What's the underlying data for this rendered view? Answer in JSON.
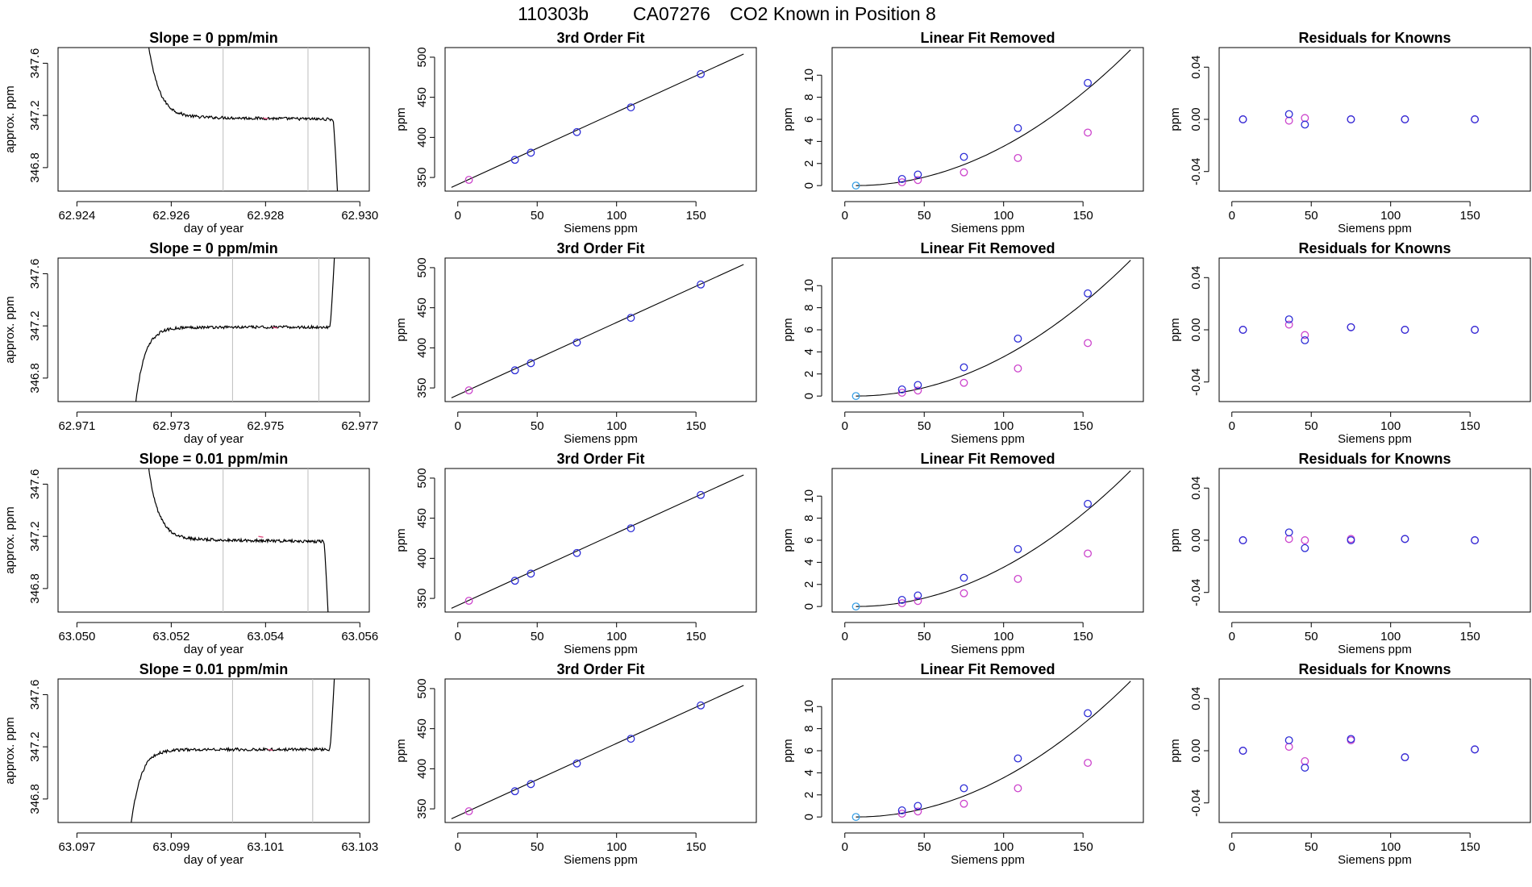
{
  "title": {
    "run_id": "110303b",
    "tank_id": "CA07276",
    "description": "CO2 Known in Position  8"
  },
  "colors": {
    "line": "#000000",
    "frame": "#000000",
    "guide": "#bdbdbd",
    "known_point": "#2e2ed6",
    "residual_point": "#cc44cc",
    "origin_point": "#3aa0e6",
    "highlight_point": "#e05080"
  },
  "chart_data": [
    {
      "type": "line",
      "panel": "trace",
      "row": 1,
      "title": "Slope =  0  ppm/min",
      "xlabel": "day of year",
      "ylabel": "approx. ppm",
      "xlim": [
        62.9236,
        62.9302
      ],
      "ylim": [
        346.62,
        347.72
      ],
      "xticks": [
        "62.924",
        "62.926",
        "62.928",
        "62.930"
      ],
      "yticks": [
        "346.8",
        "347.2",
        "347.6"
      ],
      "guides_x": [
        62.9271,
        62.9289
      ],
      "highlight": [
        62.928,
        347.18
      ],
      "trace": {
        "t0": 62.9254,
        "t1": 62.92955,
        "plateau": 347.19,
        "start": 347.72,
        "end": 346.62,
        "shape": "settle-drop"
      }
    },
    {
      "type": "scatter",
      "panel": "fit",
      "row": 1,
      "title": "3rd Order Fit",
      "xlabel": "Siemens ppm",
      "ylabel": "ppm",
      "xlim": [
        -8,
        188
      ],
      "ylim": [
        333,
        512
      ],
      "xticks": [
        "0",
        "50",
        "100",
        "150"
      ],
      "yticks": [
        "350",
        "400",
        "450",
        "500"
      ],
      "fit_line": [
        [
          -4,
          337.6
        ],
        [
          180,
          504.0
        ]
      ],
      "points_known": [
        [
          36,
          372.0
        ],
        [
          46,
          380.9
        ],
        [
          75,
          406.6
        ],
        [
          109,
          437.4
        ],
        [
          153,
          479.0
        ]
      ],
      "points_sample": [
        [
          7,
          347.0
        ]
      ]
    },
    {
      "type": "scatter",
      "panel": "linear_removed",
      "row": 1,
      "title": "Linear Fit Removed",
      "xlabel": "Siemens ppm",
      "ylabel": "ppm",
      "xlim": [
        -8,
        188
      ],
      "ylim": [
        -0.5,
        12.5
      ],
      "xticks": [
        "0",
        "50",
        "100",
        "150"
      ],
      "yticks": [
        "0",
        "2",
        "4",
        "6",
        "8",
        "10"
      ],
      "fit_curve": {
        "x0": 7,
        "x1": 180,
        "a": 0.000411,
        "exp": 2
      },
      "points_known": [
        [
          36,
          0.6
        ],
        [
          46,
          1.0
        ],
        [
          75,
          2.6
        ],
        [
          109,
          5.2
        ],
        [
          153,
          9.3
        ]
      ],
      "points_sample": [
        [
          36,
          0.3
        ],
        [
          46,
          0.5
        ],
        [
          75,
          1.2
        ],
        [
          109,
          2.5
        ],
        [
          153,
          4.8
        ]
      ],
      "points_origin": [
        [
          7,
          0.0
        ]
      ]
    },
    {
      "type": "scatter",
      "panel": "residuals",
      "row": 1,
      "title": "Residuals for Knowns",
      "xlabel": "Siemens ppm",
      "ylabel": "ppm",
      "xlim": [
        -8,
        188
      ],
      "ylim": [
        -0.055,
        0.055
      ],
      "xticks": [
        "0",
        "50",
        "100",
        "150"
      ],
      "yticks": [
        "-0.04",
        "0.00",
        "0.04"
      ],
      "points_known": [
        [
          7,
          0.0
        ],
        [
          36,
          0.004
        ],
        [
          46,
          -0.004
        ],
        [
          75,
          0.0
        ],
        [
          109,
          0.0
        ],
        [
          153,
          0.0
        ]
      ],
      "points_sample": [
        [
          7,
          0.0
        ],
        [
          36,
          -0.001
        ],
        [
          46,
          0.001
        ],
        [
          75,
          0.0
        ],
        [
          109,
          0.0
        ],
        [
          153,
          0.0
        ]
      ]
    },
    {
      "type": "line",
      "panel": "trace",
      "row": 2,
      "title": "Slope =  0  ppm/min",
      "xlabel": "day of year",
      "ylabel": "approx. ppm",
      "xlim": [
        62.9706,
        62.9772
      ],
      "ylim": [
        346.62,
        347.72
      ],
      "xticks": [
        "62.971",
        "62.973",
        "62.975",
        "62.977"
      ],
      "yticks": [
        "346.8",
        "347.2",
        "347.6"
      ],
      "guides_x": [
        62.9743,
        62.97613
      ],
      "highlight": [
        62.9752,
        347.19
      ],
      "trace": {
        "t0": 62.9721,
        "t1": 62.9765,
        "plateau": 347.19,
        "start": 346.62,
        "end": 347.72,
        "shape": "rise-jump"
      }
    },
    {
      "type": "scatter",
      "panel": "fit",
      "row": 2,
      "title": "3rd Order Fit",
      "xlabel": "Siemens ppm",
      "ylabel": "ppm",
      "xlim": [
        -8,
        188
      ],
      "ylim": [
        333,
        512
      ],
      "xticks": [
        "0",
        "50",
        "100",
        "150"
      ],
      "yticks": [
        "350",
        "400",
        "450",
        "500"
      ],
      "fit_line": [
        [
          -4,
          337.6
        ],
        [
          180,
          504.0
        ]
      ],
      "points_known": [
        [
          36,
          372.0
        ],
        [
          46,
          380.9
        ],
        [
          75,
          406.6
        ],
        [
          109,
          437.4
        ],
        [
          153,
          479.0
        ]
      ],
      "points_sample": [
        [
          7,
          347.0
        ]
      ]
    },
    {
      "type": "scatter",
      "panel": "linear_removed",
      "row": 2,
      "title": "Linear Fit Removed",
      "xlabel": "Siemens ppm",
      "ylabel": "ppm",
      "xlim": [
        -8,
        188
      ],
      "ylim": [
        -0.5,
        12.5
      ],
      "xticks": [
        "0",
        "50",
        "100",
        "150"
      ],
      "yticks": [
        "0",
        "2",
        "4",
        "6",
        "8",
        "10"
      ],
      "fit_curve": {
        "x0": 7,
        "x1": 180,
        "a": 0.000411,
        "exp": 2
      },
      "points_known": [
        [
          36,
          0.6
        ],
        [
          46,
          1.0
        ],
        [
          75,
          2.6
        ],
        [
          109,
          5.2
        ],
        [
          153,
          9.3
        ]
      ],
      "points_sample": [
        [
          36,
          0.3
        ],
        [
          46,
          0.5
        ],
        [
          75,
          1.2
        ],
        [
          109,
          2.5
        ],
        [
          153,
          4.8
        ]
      ],
      "points_origin": [
        [
          7,
          0.0
        ]
      ]
    },
    {
      "type": "scatter",
      "panel": "residuals",
      "row": 2,
      "title": "Residuals for Knowns",
      "xlabel": "Siemens ppm",
      "ylabel": "ppm",
      "xlim": [
        -8,
        188
      ],
      "ylim": [
        -0.055,
        0.055
      ],
      "xticks": [
        "0",
        "50",
        "100",
        "150"
      ],
      "yticks": [
        "-0.04",
        "0.00",
        "0.04"
      ],
      "points_known": [
        [
          7,
          0.0
        ],
        [
          36,
          0.008
        ],
        [
          46,
          -0.008
        ],
        [
          75,
          0.002
        ],
        [
          109,
          0.0
        ],
        [
          153,
          0.0
        ]
      ],
      "points_sample": [
        [
          7,
          0.0
        ],
        [
          36,
          0.004
        ],
        [
          46,
          -0.004
        ],
        [
          75,
          0.002
        ],
        [
          109,
          0.0
        ],
        [
          153,
          0.0
        ]
      ]
    },
    {
      "type": "line",
      "panel": "trace",
      "row": 3,
      "title": "Slope =  0.01  ppm/min",
      "xlabel": "day of year",
      "ylabel": "approx. ppm",
      "xlim": [
        63.0496,
        63.0562
      ],
      "ylim": [
        346.62,
        347.72
      ],
      "xticks": [
        "63.050",
        "63.052",
        "63.054",
        "63.056"
      ],
      "yticks": [
        "346.8",
        "347.2",
        "347.6"
      ],
      "guides_x": [
        63.0531,
        63.0549
      ],
      "highlight": [
        63.0539,
        347.2
      ],
      "trace": {
        "t0": 63.0514,
        "t1": 63.05535,
        "plateau": 347.18,
        "start": 347.72,
        "end": 346.62,
        "shape": "settle-drop"
      }
    },
    {
      "type": "scatter",
      "panel": "fit",
      "row": 3,
      "title": "3rd Order Fit",
      "xlabel": "Siemens ppm",
      "ylabel": "ppm",
      "xlim": [
        -8,
        188
      ],
      "ylim": [
        333,
        512
      ],
      "xticks": [
        "0",
        "50",
        "100",
        "150"
      ],
      "yticks": [
        "350",
        "400",
        "450",
        "500"
      ],
      "fit_line": [
        [
          -4,
          337.6
        ],
        [
          180,
          504.0
        ]
      ],
      "points_known": [
        [
          36,
          372.0
        ],
        [
          46,
          380.9
        ],
        [
          75,
          406.6
        ],
        [
          109,
          437.4
        ],
        [
          153,
          479.0
        ]
      ],
      "points_sample": [
        [
          7,
          347.0
        ]
      ]
    },
    {
      "type": "scatter",
      "panel": "linear_removed",
      "row": 3,
      "title": "Linear Fit Removed",
      "xlabel": "Siemens ppm",
      "ylabel": "ppm",
      "xlim": [
        -8,
        188
      ],
      "ylim": [
        -0.5,
        12.5
      ],
      "xticks": [
        "0",
        "50",
        "100",
        "150"
      ],
      "yticks": [
        "0",
        "2",
        "4",
        "6",
        "8",
        "10"
      ],
      "fit_curve": {
        "x0": 7,
        "x1": 180,
        "a": 0.000411,
        "exp": 2
      },
      "points_known": [
        [
          36,
          0.6
        ],
        [
          46,
          1.0
        ],
        [
          75,
          2.6
        ],
        [
          109,
          5.2
        ],
        [
          153,
          9.3
        ]
      ],
      "points_sample": [
        [
          36,
          0.3
        ],
        [
          46,
          0.5
        ],
        [
          75,
          1.2
        ],
        [
          109,
          2.5
        ],
        [
          153,
          4.8
        ]
      ],
      "points_origin": [
        [
          7,
          0.0
        ]
      ]
    },
    {
      "type": "scatter",
      "panel": "residuals",
      "row": 3,
      "title": "Residuals for Knowns",
      "xlabel": "Siemens ppm",
      "ylabel": "ppm",
      "xlim": [
        -8,
        188
      ],
      "ylim": [
        -0.055,
        0.055
      ],
      "xticks": [
        "0",
        "50",
        "100",
        "150"
      ],
      "yticks": [
        "-0.04",
        "0.00",
        "0.04"
      ],
      "points_known": [
        [
          7,
          0.0
        ],
        [
          36,
          0.006
        ],
        [
          46,
          -0.006
        ],
        [
          75,
          0.0
        ],
        [
          109,
          0.001
        ],
        [
          153,
          0.0
        ]
      ],
      "points_sample": [
        [
          7,
          0.0
        ],
        [
          36,
          0.001
        ],
        [
          46,
          0.0
        ],
        [
          75,
          0.001
        ],
        [
          109,
          0.001
        ],
        [
          153,
          0.0
        ]
      ]
    },
    {
      "type": "line",
      "panel": "trace",
      "row": 4,
      "title": "Slope =  0.01  ppm/min",
      "xlabel": "day of year",
      "ylabel": "approx. ppm",
      "xlim": [
        63.0966,
        63.1032
      ],
      "ylim": [
        346.62,
        347.72
      ],
      "xticks": [
        "63.097",
        "63.099",
        "63.101",
        "63.103"
      ],
      "yticks": [
        "346.8",
        "347.2",
        "347.6"
      ],
      "guides_x": [
        63.1003,
        63.102
      ],
      "highlight": [
        63.1011,
        347.18
      ],
      "trace": {
        "t0": 63.098,
        "t1": 63.1025,
        "plateau": 347.18,
        "start": 346.62,
        "end": 347.72,
        "shape": "rise-jump"
      }
    },
    {
      "type": "scatter",
      "panel": "fit",
      "row": 4,
      "title": "3rd Order Fit",
      "xlabel": "Siemens ppm",
      "ylabel": "ppm",
      "xlim": [
        -8,
        188
      ],
      "ylim": [
        333,
        512
      ],
      "xticks": [
        "0",
        "50",
        "100",
        "150"
      ],
      "yticks": [
        "350",
        "400",
        "450",
        "500"
      ],
      "fit_line": [
        [
          -4,
          337.6
        ],
        [
          180,
          504.0
        ]
      ],
      "points_known": [
        [
          36,
          372.0
        ],
        [
          46,
          380.9
        ],
        [
          75,
          406.6
        ],
        [
          109,
          437.4
        ],
        [
          153,
          479.0
        ]
      ],
      "points_sample": [
        [
          7,
          347.0
        ]
      ]
    },
    {
      "type": "scatter",
      "panel": "linear_removed",
      "row": 4,
      "title": "Linear Fit Removed",
      "xlabel": "Siemens ppm",
      "ylabel": "ppm",
      "xlim": [
        -8,
        188
      ],
      "ylim": [
        -0.5,
        12.5
      ],
      "xticks": [
        "0",
        "50",
        "100",
        "150"
      ],
      "yticks": [
        "0",
        "2",
        "4",
        "6",
        "8",
        "10"
      ],
      "fit_curve": {
        "x0": 7,
        "x1": 180,
        "a": 0.000411,
        "exp": 2
      },
      "points_known": [
        [
          36,
          0.6
        ],
        [
          46,
          1.0
        ],
        [
          75,
          2.6
        ],
        [
          109,
          5.3
        ],
        [
          153,
          9.4
        ]
      ],
      "points_sample": [
        [
          36,
          0.3
        ],
        [
          46,
          0.5
        ],
        [
          75,
          1.2
        ],
        [
          109,
          2.6
        ],
        [
          153,
          4.9
        ]
      ],
      "points_origin": [
        [
          7,
          0.0
        ]
      ]
    },
    {
      "type": "scatter",
      "panel": "residuals",
      "row": 4,
      "title": "Residuals for Knowns",
      "xlabel": "Siemens ppm",
      "ylabel": "ppm",
      "xlim": [
        -8,
        188
      ],
      "ylim": [
        -0.055,
        0.055
      ],
      "xticks": [
        "0",
        "50",
        "100",
        "150"
      ],
      "yticks": [
        "-0.04",
        "0.00",
        "0.04"
      ],
      "points_known": [
        [
          7,
          0.0
        ],
        [
          36,
          0.008
        ],
        [
          46,
          -0.013
        ],
        [
          75,
          0.009
        ],
        [
          109,
          -0.005
        ],
        [
          153,
          0.001
        ]
      ],
      "points_sample": [
        [
          7,
          0.0
        ],
        [
          36,
          0.003
        ],
        [
          46,
          -0.008
        ],
        [
          75,
          0.008
        ],
        [
          109,
          -0.005
        ],
        [
          153,
          0.001
        ]
      ]
    }
  ]
}
